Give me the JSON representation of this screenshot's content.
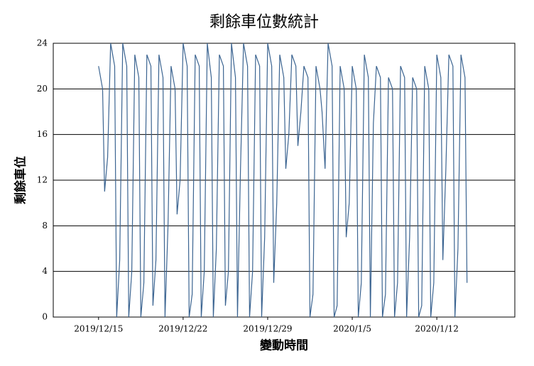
{
  "chart_data": {
    "type": "line",
    "title": "剩餘車位數統計",
    "xlabel": "變動時間",
    "ylabel": "剩餘車位",
    "x": [
      "2019-12-15T00:00",
      "2019-12-15T08:00",
      "2019-12-15T12:00",
      "2019-12-15T18:00",
      "2019-12-16T00:00",
      "2019-12-16T08:00",
      "2019-12-16T12:00",
      "2019-12-16T18:00",
      "2019-12-17T00:00",
      "2019-12-17T08:00",
      "2019-12-17T12:00",
      "2019-12-17T18:00",
      "2019-12-18T00:00",
      "2019-12-18T08:00",
      "2019-12-18T12:00",
      "2019-12-18T18:00",
      "2019-12-19T00:00",
      "2019-12-19T08:00",
      "2019-12-19T12:00",
      "2019-12-19T18:00",
      "2019-12-20T00:00",
      "2019-12-20T08:00",
      "2019-12-20T12:00",
      "2019-12-20T18:00",
      "2019-12-21T00:00",
      "2019-12-21T08:00",
      "2019-12-21T12:00",
      "2019-12-21T18:00",
      "2019-12-22T00:00",
      "2019-12-22T08:00",
      "2019-12-22T12:00",
      "2019-12-22T18:00",
      "2019-12-23T00:00",
      "2019-12-23T08:00",
      "2019-12-23T12:00",
      "2019-12-23T18:00",
      "2019-12-24T00:00",
      "2019-12-24T08:00",
      "2019-12-24T12:00",
      "2019-12-24T18:00",
      "2019-12-25T00:00",
      "2019-12-25T08:00",
      "2019-12-25T12:00",
      "2019-12-25T18:00",
      "2019-12-26T00:00",
      "2019-12-26T08:00",
      "2019-12-26T12:00",
      "2019-12-26T18:00",
      "2019-12-27T00:00",
      "2019-12-27T08:00",
      "2019-12-27T12:00",
      "2019-12-27T18:00",
      "2019-12-28T00:00",
      "2019-12-28T08:00",
      "2019-12-28T12:00",
      "2019-12-28T18:00",
      "2019-12-29T00:00",
      "2019-12-29T08:00",
      "2019-12-29T12:00",
      "2019-12-29T18:00",
      "2019-12-30T00:00",
      "2019-12-30T08:00",
      "2019-12-30T12:00",
      "2019-12-30T18:00",
      "2019-12-31T00:00",
      "2019-12-31T08:00",
      "2019-12-31T12:00",
      "2019-12-31T18:00",
      "2020-01-01T00:00",
      "2020-01-01T08:00",
      "2020-01-01T12:00",
      "2020-01-01T18:00",
      "2020-01-02T00:00",
      "2020-01-02T08:00",
      "2020-01-02T12:00",
      "2020-01-02T18:00",
      "2020-01-03T00:00",
      "2020-01-03T08:00",
      "2020-01-03T12:00",
      "2020-01-03T18:00",
      "2020-01-04T00:00",
      "2020-01-04T08:00",
      "2020-01-04T12:00",
      "2020-01-04T18:00",
      "2020-01-05T00:00",
      "2020-01-05T08:00",
      "2020-01-05T12:00",
      "2020-01-05T18:00",
      "2020-01-06T00:00",
      "2020-01-06T08:00",
      "2020-01-06T12:00",
      "2020-01-06T18:00",
      "2020-01-07T00:00",
      "2020-01-07T08:00",
      "2020-01-07T12:00",
      "2020-01-07T18:00",
      "2020-01-08T00:00",
      "2020-01-08T08:00",
      "2020-01-08T12:00",
      "2020-01-08T18:00",
      "2020-01-09T00:00",
      "2020-01-09T08:00",
      "2020-01-09T12:00",
      "2020-01-09T18:00",
      "2020-01-10T00:00",
      "2020-01-10T08:00",
      "2020-01-10T12:00",
      "2020-01-10T18:00",
      "2020-01-11T00:00",
      "2020-01-11T08:00",
      "2020-01-11T12:00",
      "2020-01-11T18:00",
      "2020-01-12T00:00",
      "2020-01-12T08:00",
      "2020-01-12T12:00",
      "2020-01-12T18:00",
      "2020-01-13T00:00",
      "2020-01-13T08:00",
      "2020-01-13T12:00",
      "2020-01-13T18:00",
      "2020-01-14T00:00",
      "2020-01-14T08:00",
      "2020-01-14T12:00"
    ],
    "series": [
      {
        "name": "剩餘車位",
        "color": "#3b6491",
        "values": [
          22,
          20,
          11,
          14,
          24,
          22,
          0,
          5,
          24,
          22,
          0,
          4,
          23,
          21,
          0,
          3,
          23,
          22,
          1,
          5,
          23,
          21,
          0,
          8,
          22,
          20,
          9,
          12,
          24,
          22,
          0,
          2,
          23,
          22,
          0,
          4,
          24,
          21,
          0,
          6,
          23,
          22,
          1,
          4,
          24,
          21,
          0,
          13,
          24,
          22,
          0,
          4,
          23,
          22,
          0,
          7,
          24,
          22,
          3,
          10,
          23,
          21,
          13,
          16,
          23,
          22,
          15,
          18,
          22,
          21,
          0,
          2,
          22,
          20,
          18,
          13,
          24,
          22,
          0,
          1,
          22,
          20,
          7,
          10,
          22,
          20,
          0,
          3,
          23,
          21,
          0,
          17,
          22,
          21,
          0,
          2,
          21,
          20,
          0,
          3,
          22,
          21,
          0,
          7,
          21,
          20,
          0,
          1,
          22,
          20,
          0,
          3,
          23,
          21,
          5,
          13,
          23,
          22,
          0,
          6,
          23,
          21,
          3
        ]
      }
    ],
    "xlim": [
      "2019-12-11T06:00",
      "2020-01-18T11:00"
    ],
    "xticks": [
      {
        "value": "2019-12-15T00:00",
        "label": "2019/12/15"
      },
      {
        "value": "2019-12-22T00:00",
        "label": "2019/12/22"
      },
      {
        "value": "2019-12-29T00:00",
        "label": "2019/12/29"
      },
      {
        "value": "2020-01-05T00:00",
        "label": "2020/1/5"
      },
      {
        "value": "2020-01-12T00:00",
        "label": "2020/1/12"
      }
    ],
    "ylim": [
      0,
      24
    ],
    "yticks": [
      0,
      4,
      8,
      12,
      16,
      20,
      24
    ],
    "grid": true
  }
}
